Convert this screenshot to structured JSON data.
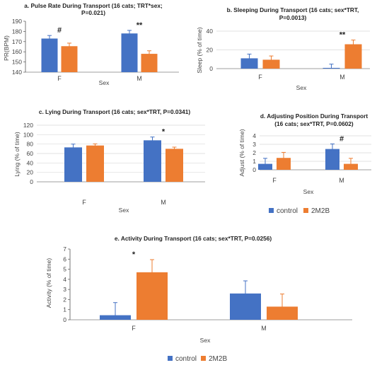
{
  "colors": {
    "control": "#4472C4",
    "2M2B": "#ED7D31"
  },
  "legend_a": [
    {
      "key": "control",
      "label": "control"
    },
    {
      "key": "2M2B",
      "label": "2M2B"
    }
  ],
  "legend_b": [
    {
      "key": "control",
      "label": "control"
    },
    {
      "key": "2M2B",
      "label": "2M2B"
    }
  ],
  "chart_data": [
    {
      "id": "a",
      "type": "bar",
      "title": [
        "a. Pulse Rate During Transport (16 cats; TRT*sex;",
        "P=0.021)"
      ],
      "xlabel": "Sex",
      "ylabel": "PR(BPM)",
      "categories": [
        "F",
        "M"
      ],
      "ylim": [
        140,
        190
      ],
      "yticks": [
        140,
        150,
        160,
        170,
        180,
        190
      ],
      "grid": false,
      "series": [
        {
          "name": "control",
          "values": [
            173,
            178
          ],
          "errors": [
            3,
            3
          ]
        },
        {
          "name": "2M2B",
          "values": [
            165.5,
            158
          ],
          "errors": [
            3,
            3
          ]
        }
      ],
      "annotations": [
        {
          "category": "F",
          "text": "#"
        },
        {
          "category": "M",
          "text": "**"
        }
      ]
    },
    {
      "id": "b",
      "type": "bar",
      "title": [
        "b. Sleeping During Transport (16 cats; sex*TRT,",
        "P=0.0013)"
      ],
      "xlabel": "Sex",
      "ylabel": "Sleep (% of time)",
      "categories": [
        "F",
        "M"
      ],
      "ylim": [
        0,
        40
      ],
      "yticks": [
        0,
        20,
        40
      ],
      "grid": true,
      "series": [
        {
          "name": "control",
          "values": [
            11,
            0.8
          ],
          "errors": [
            4.5,
            4
          ]
        },
        {
          "name": "2M2B",
          "values": [
            9.5,
            26
          ],
          "errors": [
            4,
            4.5
          ]
        }
      ],
      "annotations": [
        {
          "category": "M",
          "text": "**"
        }
      ]
    },
    {
      "id": "c",
      "type": "bar",
      "title": [
        "c. Lying During Transport (16 cats; sex*TRT, P=0.0341)"
      ],
      "xlabel": "Sex",
      "ylabel": "Lying (% of time)",
      "categories": [
        "F",
        "M"
      ],
      "ylim": [
        0,
        120
      ],
      "yticks": [
        0,
        20,
        40,
        60,
        80,
        100,
        120
      ],
      "grid": true,
      "series": [
        {
          "name": "control",
          "values": [
            73,
            88
          ],
          "errors": [
            7,
            7
          ]
        },
        {
          "name": "2M2B",
          "values": [
            77,
            70
          ],
          "errors": [
            3.5,
            3.5
          ]
        }
      ],
      "annotations": [
        {
          "category": "M",
          "text": "*"
        }
      ]
    },
    {
      "id": "d",
      "type": "bar",
      "title": [
        "d. Adjusting Position During Transport",
        "(16 cats; sex*TRT, P=0.0602)"
      ],
      "xlabel": "Sex",
      "ylabel": "Adjust (% of time)",
      "categories": [
        "F",
        "M"
      ],
      "ylim": [
        0,
        4
      ],
      "yticks": [
        0,
        1,
        2,
        3,
        4
      ],
      "grid": true,
      "series": [
        {
          "name": "control",
          "values": [
            0.7,
            2.45
          ],
          "errors": [
            0.65,
            0.6
          ]
        },
        {
          "name": "2M2B",
          "values": [
            1.4,
            0.7
          ],
          "errors": [
            0.65,
            0.65
          ]
        }
      ],
      "annotations": [
        {
          "category": "M",
          "text": "#"
        }
      ]
    },
    {
      "id": "e",
      "type": "bar",
      "title": [
        "e. Activity During Transport (16 cats; sex*TRT, P=0.0256)"
      ],
      "xlabel": "Sex",
      "ylabel": "Activity (% of time)",
      "categories": [
        "F",
        "M"
      ],
      "ylim": [
        0,
        7
      ],
      "yticks": [
        0,
        1,
        2,
        3,
        4,
        5,
        6,
        7
      ],
      "grid": false,
      "series": [
        {
          "name": "control",
          "values": [
            0.45,
            2.6
          ],
          "errors": [
            1.25,
            1.25
          ]
        },
        {
          "name": "2M2B",
          "values": [
            4.7,
            1.3
          ],
          "errors": [
            1.25,
            1.25
          ]
        }
      ],
      "annotations": [
        {
          "category": "F",
          "text": "*"
        }
      ]
    }
  ]
}
